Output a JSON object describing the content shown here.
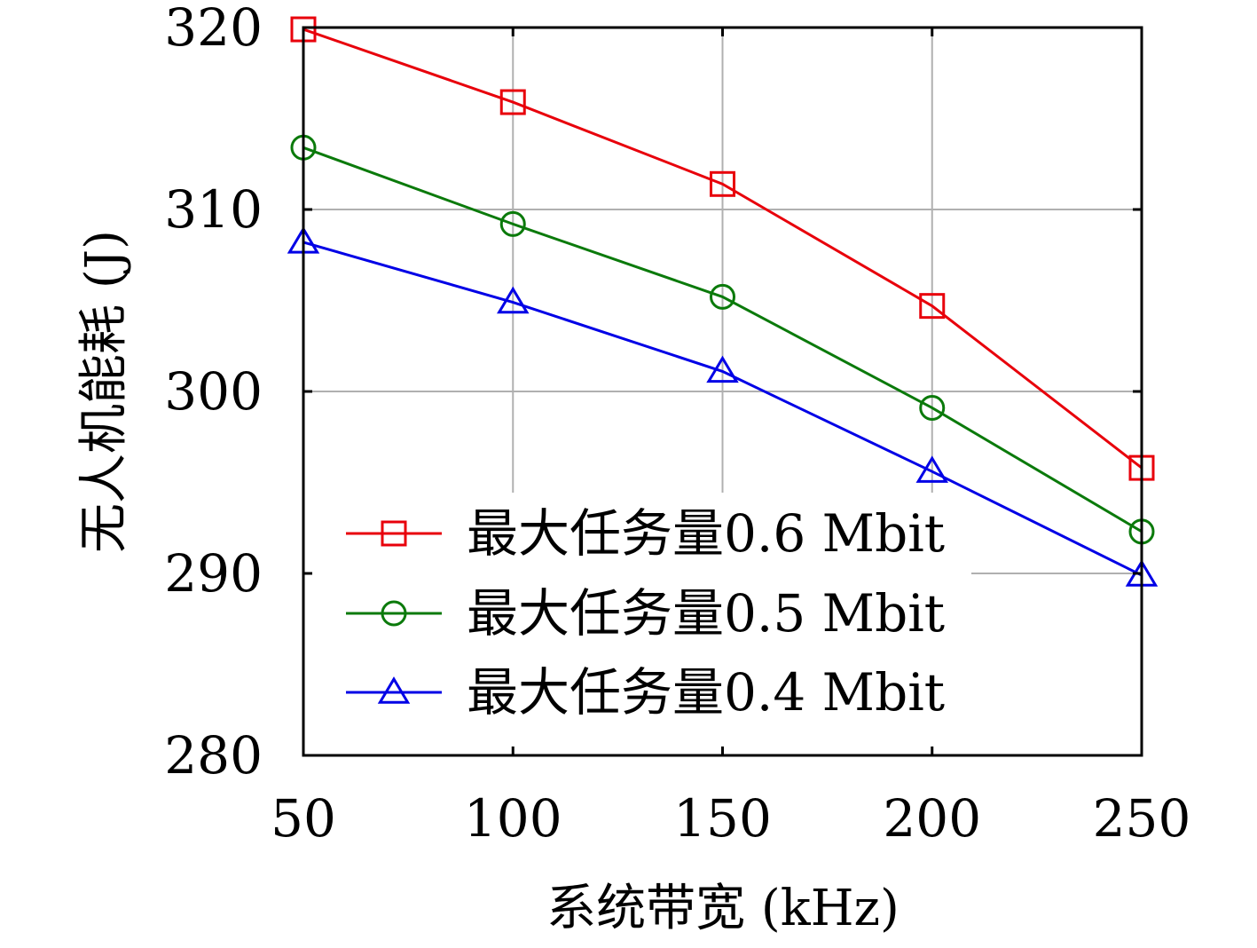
{
  "chart_data": {
    "type": "line",
    "title": "",
    "xlabel": "系统带宽 (kHz)",
    "ylabel": "无人机能耗 (J)",
    "x": [
      50,
      100,
      150,
      200,
      250
    ],
    "xlim": [
      50,
      250
    ],
    "ylim": [
      280,
      320
    ],
    "xticks": [
      "50",
      "100",
      "150",
      "200",
      "250"
    ],
    "yticks": [
      "280",
      "290",
      "300",
      "310",
      "320"
    ],
    "grid": true,
    "legend_position": "bottom-center",
    "series": [
      {
        "name": "最大任务量0.6 Mbit",
        "values": [
          319.9,
          315.9,
          311.4,
          304.7,
          295.8
        ],
        "color": "#e8000b",
        "marker": "square"
      },
      {
        "name": "最大任务量0.5 Mbit",
        "values": [
          313.4,
          309.2,
          305.2,
          299.1,
          292.3
        ],
        "color": "#0b7a0b",
        "marker": "circle"
      },
      {
        "name": "最大任务量0.4 Mbit",
        "values": [
          308.2,
          304.9,
          301.1,
          295.6,
          289.9
        ],
        "color": "#0000e6",
        "marker": "triangle"
      }
    ]
  }
}
